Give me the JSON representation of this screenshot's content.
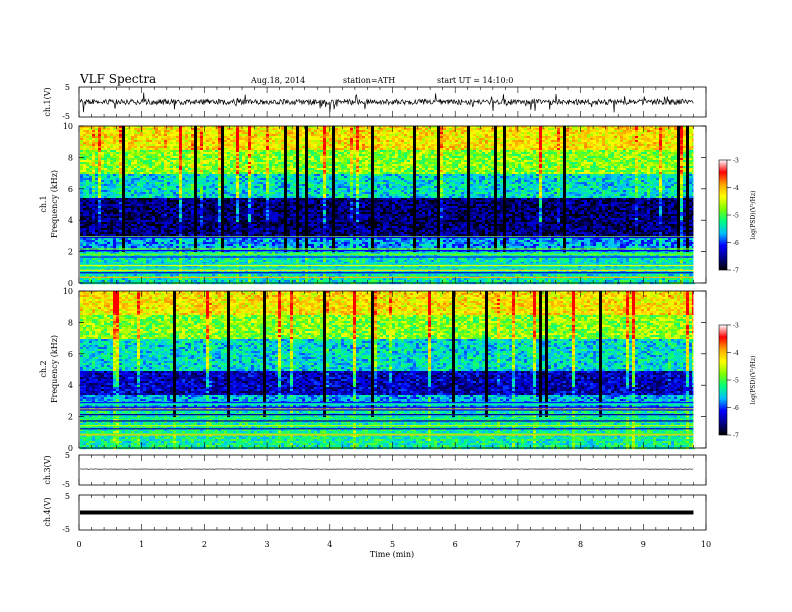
{
  "header": {
    "title": "VLF  Spectra",
    "date": "Aug.18, 2014",
    "station": "station=ATH",
    "start": "start  UT =   14:10:0"
  },
  "chart_data": [
    {
      "type": "line",
      "panel": "ch1-waveform",
      "ylabel": "ch.1(V)",
      "ylim": [
        -5,
        5
      ],
      "yticks": [
        "5",
        "-5"
      ],
      "baseline": 0,
      "noise_amplitude": 0.9,
      "spike_amplitude": 3.5
    },
    {
      "type": "heatmap",
      "panel": "ch1-spectrogram",
      "ylabel_channel": "ch.1",
      "ylabel": "Frequency  (kHz)",
      "ylim": [
        0,
        10
      ],
      "yticks": [
        "0",
        "2",
        "4",
        "6",
        "8",
        "10"
      ],
      "colorbar_label": "log(PSD)(V²/Hz)",
      "colorbar_range": [
        -7,
        -3
      ],
      "colorbar_ticks": [
        "-3",
        "-4",
        "-5",
        "-6",
        "-7"
      ],
      "bands": [
        {
          "f_low": 0,
          "f_high": 2,
          "log_psd": -5.2
        },
        {
          "f_low": 2,
          "f_high": 3,
          "log_psd": -5.6
        },
        {
          "f_low": 3,
          "f_high": 5.5,
          "log_psd": -6.6
        },
        {
          "f_low": 5.5,
          "f_high": 7,
          "log_psd": -5.3
        },
        {
          "f_low": 7,
          "f_high": 8.5,
          "log_psd": -4.5
        },
        {
          "f_low": 8.5,
          "f_high": 10,
          "log_psd": -3.9
        }
      ]
    },
    {
      "type": "heatmap",
      "panel": "ch2-spectrogram",
      "ylabel_channel": "ch.2",
      "ylabel": "Frequency  (kHz)",
      "ylim": [
        0,
        10
      ],
      "yticks": [
        "0",
        "2",
        "4",
        "6",
        "8",
        "10"
      ],
      "colorbar_label": "log(PSD)(V²/Hz)",
      "colorbar_range": [
        -7,
        -3
      ],
      "colorbar_ticks": [
        "-3",
        "-4",
        "-5",
        "-6",
        "-7"
      ],
      "bands": [
        {
          "f_low": 0,
          "f_high": 2.5,
          "log_psd": -5.1
        },
        {
          "f_low": 2.5,
          "f_high": 3.5,
          "log_psd": -5.5
        },
        {
          "f_low": 3.5,
          "f_high": 5,
          "log_psd": -6.3
        },
        {
          "f_low": 5,
          "f_high": 7,
          "log_psd": -5.3
        },
        {
          "f_low": 7,
          "f_high": 8.5,
          "log_psd": -4.5
        },
        {
          "f_low": 8.5,
          "f_high": 10,
          "log_psd": -3.9
        }
      ]
    },
    {
      "type": "line",
      "panel": "ch3-waveform",
      "ylabel": "ch.3(V)",
      "ylim": [
        -5,
        5
      ],
      "yticks": [
        "5",
        "-5"
      ],
      "baseline": 0.3,
      "noise_amplitude": 0.08
    },
    {
      "type": "line",
      "panel": "ch4-waveform",
      "ylabel": "ch.4(V)",
      "ylim": [
        -5,
        5
      ],
      "yticks": [
        "5",
        "-5"
      ],
      "baseline": 0
    }
  ],
  "xaxis": {
    "label": "Time  (min)",
    "range": [
      0,
      10
    ],
    "data_end": 9.8,
    "ticks": [
      "0",
      "1",
      "2",
      "3",
      "4",
      "5",
      "6",
      "7",
      "8",
      "9",
      "10"
    ]
  },
  "colors": {
    "axis": "#000000",
    "colormap": [
      "#000000",
      "#00008b",
      "#0000ff",
      "#00bfff",
      "#00ff7f",
      "#7fff00",
      "#ffff00",
      "#ffa500",
      "#ff0000",
      "#ffffff"
    ]
  }
}
